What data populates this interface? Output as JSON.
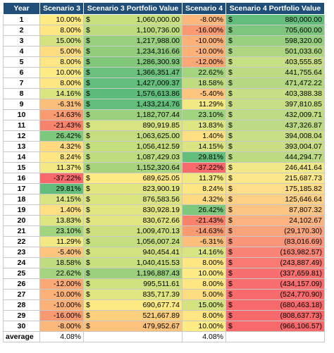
{
  "headers": [
    "Year",
    "Scenario 3",
    "Scenario 3 Portfolio Value",
    "Scenario 4",
    "Scenario 4 Portfolio Value"
  ],
  "currency_symbol": "$",
  "rows": [
    {
      "year": "1",
      "s3": "10.00%",
      "v3": "1,060,000.00",
      "s4": "-8.00%",
      "v4": "880,000.00",
      "c3": "#fdeb84",
      "cv3": "#c8e07e",
      "c4": "#fcb87a",
      "cv4": "#63be7b"
    },
    {
      "year": "2",
      "s3": "8.00%",
      "v3": "1,100,736.00",
      "s4": "-16.00%",
      "v4": "705,600.00",
      "c3": "#fee783",
      "cv3": "#bcdc7e",
      "c4": "#f99a72",
      "cv4": "#7ec67d"
    },
    {
      "year": "3",
      "s3": "15.00%",
      "v3": "1,217,988.00",
      "s4": "-10.00%",
      "v4": "598,320.00",
      "c3": "#d4e37f",
      "cv3": "#97cf7c",
      "c4": "#fbb178",
      "cv4": "#98d07f"
    },
    {
      "year": "4",
      "s3": "5.00%",
      "v3": "1,234,316.66",
      "s4": "-10.00%",
      "v4": "501,033.60",
      "c3": "#fedd81",
      "cv3": "#92cd7c",
      "c4": "#fbb178",
      "cv4": "#aed681"
    },
    {
      "year": "5",
      "s3": "8.00%",
      "v3": "1,286,300.93",
      "s4": "-12.00%",
      "v4": "403,555.85",
      "c3": "#fee783",
      "cv3": "#82c87b",
      "c4": "#faa976",
      "cv4": "#c6de84"
    },
    {
      "year": "6",
      "s3": "10.00%",
      "v3": "1,366,351.47",
      "s4": "22.62%",
      "v4": "441,755.64",
      "c3": "#fdeb84",
      "cv3": "#6bc17b",
      "c4": "#a4d57e",
      "cv4": "#bcdb83"
    },
    {
      "year": "7",
      "s3": "8.00%",
      "v3": "1,427,009.37",
      "s4": "18.58%",
      "v4": "471,472.22",
      "c3": "#fee783",
      "cv3": "#63be7b",
      "c4": "#bfdc7f",
      "cv4": "#b5d882"
    },
    {
      "year": "8",
      "s3": "14.16%",
      "v3": "1,576,613.86",
      "s4": "-5.40%",
      "v4": "403,388.38",
      "c3": "#d9e580",
      "cv3": "#5ebc7a",
      "c4": "#fdc57d",
      "cv4": "#c6de84"
    },
    {
      "year": "9",
      "s3": "-6.31%",
      "v3": "1,433,214.76",
      "s4": "11.29%",
      "v4": "397,810.85",
      "c3": "#fcbf7b",
      "cv3": "#63be7b",
      "c4": "#f2e982",
      "cv4": "#c7de85"
    },
    {
      "year": "10",
      "s3": "-14.63%",
      "v3": "1,182,707.44",
      "s4": "23.10%",
      "v4": "432,009.71",
      "c3": "#f99b71",
      "cv3": "#9bd07c",
      "c4": "#a0d47e",
      "cv4": "#bedc84"
    },
    {
      "year": "11",
      "s3": "-21.43%",
      "v3": "890,919.85",
      "s4": "13.83%",
      "v4": "437,326.87",
      "c3": "#f7836c",
      "cv3": "#d8e47f",
      "c4": "#dde681",
      "cv4": "#bddb84"
    },
    {
      "year": "12",
      "s3": "26.42%",
      "v3": "1,063,625.00",
      "s4": "1.40%",
      "v4": "394,008.04",
      "c3": "#7dc87c",
      "cv3": "#c4de7e",
      "c4": "#fee082",
      "cv4": "#c8df85"
    },
    {
      "year": "13",
      "s3": "4.32%",
      "v3": "1,056,412.59",
      "s4": "14.15%",
      "v4": "393,004.07",
      "c3": "#fedb80",
      "cv3": "#c6df7e",
      "c4": "#dae581",
      "cv4": "#c8df85"
    },
    {
      "year": "14",
      "s3": "8.24%",
      "v3": "1,087,429.03",
      "s4": "29.81%",
      "v4": "444,294.77",
      "c3": "#fee783",
      "cv3": "#bedd7e",
      "c4": "#63be7b",
      "cv4": "#bcdb83"
    },
    {
      "year": "15",
      "s3": "11.37%",
      "v3": "1,152,320.64",
      "s4": "-37.22%",
      "v4": "246,441.64",
      "c3": "#f3e982",
      "cv3": "#a7d47d",
      "c4": "#f8696b",
      "cv4": "#f1e889"
    },
    {
      "year": "16",
      "s3": "-37.22%",
      "v3": "689,625.05",
      "s4": "11.37%",
      "v4": "215,687.73",
      "c3": "#f8696b",
      "cv3": "#fdea84",
      "c4": "#f2e982",
      "cv4": "#fbe88b"
    },
    {
      "year": "17",
      "s3": "29.81%",
      "v3": "823,900.19",
      "s4": "8.24%",
      "v4": "175,185.82",
      "c3": "#63be7b",
      "cv3": "#e3e780",
      "c4": "#fee783",
      "cv4": "#fedd88"
    },
    {
      "year": "18",
      "s3": "14.15%",
      "v3": "876,583.56",
      "s4": "4.32%",
      "v4": "125,646.64",
      "c3": "#dae581",
      "cv3": "#dae580",
      "c4": "#fedb80",
      "cv4": "#fdd085"
    },
    {
      "year": "19",
      "s3": "1.40%",
      "v3": "830,928.19",
      "s4": "26.42%",
      "v4": "87,807.32",
      "c3": "#fee082",
      "cv3": "#e1e680",
      "c4": "#7dc87c",
      "cv4": "#fdc583"
    },
    {
      "year": "20",
      "s3": "13.83%",
      "v3": "830,672.66",
      "s4": "-21.43%",
      "v4": "24,102.67",
      "c3": "#dde681",
      "cv3": "#e1e680",
      "c4": "#f7836c",
      "cv4": "#fcb37f"
    },
    {
      "year": "21",
      "s3": "23.10%",
      "v3": "1,009,470.13",
      "s4": "-14.63%",
      "v4": "(29,170.30)",
      "c3": "#a0d47e",
      "cv3": "#cce17e",
      "c4": "#f99b71",
      "cv4": "#fba47c"
    },
    {
      "year": "22",
      "s3": "11.29%",
      "v3": "1,056,007.24",
      "s4": "-6.31%",
      "v4": "(83,016.69)",
      "c3": "#f2e982",
      "cv3": "#c6df7e",
      "c4": "#fcbf7b",
      "cv4": "#fa9579"
    },
    {
      "year": "23",
      "s3": "-5.40%",
      "v3": "940,454.41",
      "s4": "14.16%",
      "v4": "(163,982.57)",
      "c3": "#fdc57d",
      "cv3": "#d1e27f",
      "c4": "#d9e580",
      "cv4": "#f98475"
    },
    {
      "year": "24",
      "s3": "18.58%",
      "v3": "1,040,415.53",
      "s4": "8.00%",
      "v4": "(243,887.49)",
      "c3": "#bfdc7f",
      "cv3": "#c8e07e",
      "c4": "#fee783",
      "cv4": "#f87a73"
    },
    {
      "year": "25",
      "s3": "22.62%",
      "v3": "1,196,887.43",
      "s4": "10.00%",
      "v4": "(337,659.81)",
      "c3": "#a4d57e",
      "cv3": "#9cd07c",
      "c4": "#fdeb84",
      "cv4": "#f7706f"
    },
    {
      "year": "26",
      "s3": "-12.00%",
      "v3": "995,511.61",
      "s4": "8.00%",
      "v4": "(434,157.09)",
      "c3": "#faa976",
      "cv3": "#cee27f",
      "c4": "#fee783",
      "cv4": "#f86d6e"
    },
    {
      "year": "27",
      "s3": "-10.00%",
      "v3": "835,717.39",
      "s4": "5.00%",
      "v4": "(524,770.90)",
      "c3": "#fbb178",
      "cv3": "#e1e680",
      "c4": "#fedd81",
      "cv4": "#f86b6d"
    },
    {
      "year": "28",
      "s3": "-10.00%",
      "v3": "690,677.74",
      "s4": "15.00%",
      "v4": "(680,463.18)",
      "c3": "#fbb178",
      "cv3": "#fdea84",
      "c4": "#d4e37f",
      "cv4": "#f8696b"
    },
    {
      "year": "29",
      "s3": "-16.00%",
      "v3": "521,667.89",
      "s4": "8.00%",
      "v4": "(808,637.73)",
      "c3": "#f99a72",
      "cv3": "#fcd07e",
      "c4": "#fee783",
      "cv4": "#f8696b"
    },
    {
      "year": "30",
      "s3": "-8.00%",
      "v3": "479,952.67",
      "s4": "10.00%",
      "v4": "(966,106.57)",
      "c3": "#fcb87a",
      "cv3": "#fcc27c",
      "c4": "#fdeb84",
      "cv4": "#f8696b"
    }
  ],
  "footer": {
    "label": "average",
    "s3_avg": "4.08%",
    "s4_avg": "4.08%"
  },
  "colors": {
    "header_bg": "#1f4e79",
    "header_fg": "#ffffff",
    "grid": "#c8c8c8"
  }
}
